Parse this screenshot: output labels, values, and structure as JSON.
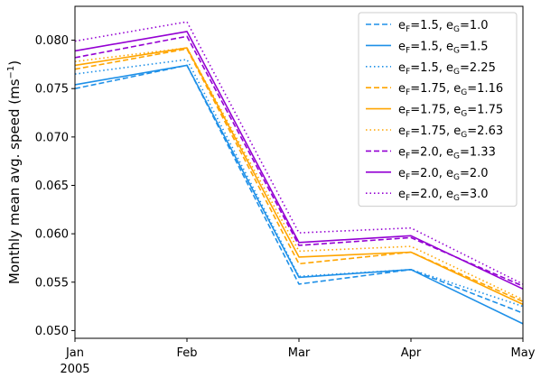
{
  "chart_data": {
    "type": "line",
    "title": "",
    "xlabel": "",
    "ylabel": "Monthly mean avg. speed (ms⁻¹)",
    "x": [
      "Jan",
      "Feb",
      "Mar",
      "Apr",
      "May"
    ],
    "x_year_label": "2005",
    "ylim": [
      0.0492,
      0.0835
    ],
    "yticks": [
      "0.050",
      "0.055",
      "0.060",
      "0.065",
      "0.070",
      "0.075",
      "0.080"
    ],
    "grid": false,
    "legend_position": "top-right",
    "series": [
      {
        "name": "e_F=1.5, e_G=1.0",
        "efsub": "1.5",
        "egsub": "1.0",
        "color": "#1e90e8",
        "dash": "dashed",
        "values": [
          0.075,
          0.0774,
          0.0548,
          0.0563,
          0.0518
        ]
      },
      {
        "name": "e_F=1.5, e_G=1.5",
        "efsub": "1.5",
        "egsub": "1.5",
        "color": "#1e90e8",
        "dash": "solid",
        "values": [
          0.0754,
          0.0774,
          0.0555,
          0.0563,
          0.0507
        ]
      },
      {
        "name": "e_F=1.5, e_G=2.25",
        "efsub": "1.5",
        "egsub": "2.25",
        "color": "#1e90e8",
        "dash": "dotted",
        "values": [
          0.0765,
          0.078,
          0.0556,
          0.0563,
          0.0525
        ]
      },
      {
        "name": "e_F=1.75, e_G=1.16",
        "efsub": "1.75",
        "egsub": "1.16",
        "color": "#ffa500",
        "dash": "dashed",
        "values": [
          0.077,
          0.0791,
          0.0569,
          0.0581,
          0.053
        ]
      },
      {
        "name": "e_F=1.75, e_G=1.75",
        "efsub": "1.75",
        "egsub": "1.75",
        "color": "#ffa500",
        "dash": "solid",
        "values": [
          0.0774,
          0.0792,
          0.0576,
          0.0581,
          0.0527
        ]
      },
      {
        "name": "e_F=1.75, e_G=2.63",
        "efsub": "1.75",
        "egsub": "2.63",
        "color": "#ffa500",
        "dash": "dotted",
        "values": [
          0.0778,
          0.0792,
          0.0582,
          0.0587,
          0.0532
        ]
      },
      {
        "name": "e_F=2.0, e_G=1.33",
        "efsub": "2.0",
        "egsub": "1.33",
        "color": "#9400d3",
        "dash": "dashed",
        "values": [
          0.0782,
          0.0804,
          0.0588,
          0.0596,
          0.0546
        ]
      },
      {
        "name": "e_F=2.0, e_G=2.0",
        "efsub": "2.0",
        "egsub": "2.0",
        "color": "#9400d3",
        "dash": "solid",
        "values": [
          0.0789,
          0.0809,
          0.0591,
          0.0598,
          0.0543
        ]
      },
      {
        "name": "e_F=2.0, e_G=3.0",
        "efsub": "2.0",
        "egsub": "3.0",
        "color": "#9400d3",
        "dash": "dotted",
        "values": [
          0.0799,
          0.0819,
          0.0601,
          0.0606,
          0.0548
        ]
      }
    ]
  }
}
